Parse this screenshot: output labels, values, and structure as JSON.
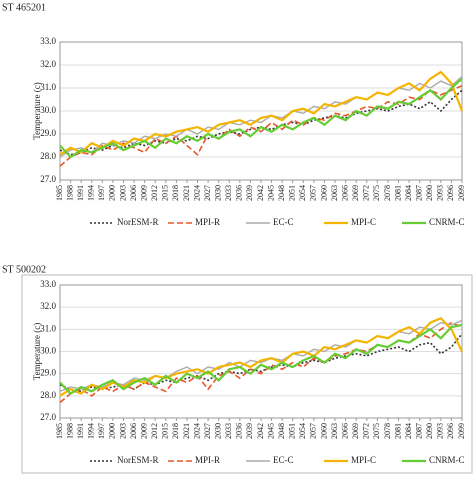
{
  "chart_data": [
    {
      "type": "line",
      "title": "ST 465201",
      "y_label": "Temperature (c)",
      "x": [
        1985,
        1988,
        1991,
        1994,
        1997,
        2000,
        2003,
        2006,
        2009,
        2012,
        2015,
        2018,
        2021,
        2024,
        2027,
        2030,
        2033,
        2036,
        2039,
        2042,
        2045,
        2048,
        2051,
        2054,
        2057,
        2060,
        2063,
        2066,
        2069,
        2072,
        2075,
        2078,
        2081,
        2084,
        2087,
        2090,
        2093,
        2096,
        2099
      ],
      "xlim": [
        1985,
        2099
      ],
      "xticks": [
        1985,
        1988,
        1991,
        1994,
        1997,
        2000,
        2003,
        2006,
        2009,
        2012,
        2015,
        2018,
        2021,
        2024,
        2027,
        2030,
        2033,
        2036,
        2039,
        2042,
        2045,
        2048,
        2051,
        2054,
        2057,
        2060,
        2063,
        2066,
        2069,
        2072,
        2075,
        2078,
        2081,
        2084,
        2087,
        2090,
        2093,
        2096,
        2099
      ],
      "ylim": [
        27,
        33
      ],
      "yticks": [
        {
          "value": 27,
          "label": "27.0"
        },
        {
          "value": 28,
          "label": "28.0"
        },
        {
          "value": 29,
          "label": "29.0"
        },
        {
          "value": 30,
          "label": "30.0"
        },
        {
          "value": 31,
          "label": "31.0"
        },
        {
          "value": 32,
          "label": "32.0"
        },
        {
          "value": 33,
          "label": "33.0"
        }
      ],
      "series": [
        {
          "name": "NorESM-R",
          "color": "#333333",
          "values": [
            28.3,
            28.1,
            28.2,
            28.4,
            28.3,
            28.5,
            28.4,
            28.6,
            28.5,
            28.7,
            28.6,
            28.8,
            28.7,
            28.9,
            28.8,
            29.0,
            29.1,
            29.0,
            29.2,
            29.3,
            29.2,
            29.4,
            29.5,
            29.4,
            29.6,
            29.7,
            29.8,
            29.7,
            29.9,
            30.0,
            30.1,
            30.0,
            30.2,
            30.3,
            30.1,
            30.4,
            30.0,
            30.5,
            30.9
          ]
        },
        {
          "name": "MPI-R",
          "color": "#e8562a",
          "values": [
            27.6,
            28.0,
            28.2,
            28.1,
            28.5,
            28.3,
            28.6,
            28.4,
            28.2,
            28.8,
            28.6,
            28.9,
            28.5,
            28.1,
            29.0,
            28.8,
            29.2,
            28.9,
            29.3,
            29.1,
            29.5,
            29.2,
            29.6,
            29.4,
            29.7,
            29.6,
            29.9,
            29.8,
            30.0,
            30.2,
            30.1,
            30.4,
            30.3,
            30.6,
            30.5,
            30.9,
            30.7,
            30.9,
            31.1
          ]
        },
        {
          "name": "EC-C",
          "color": "#aaaaaa",
          "values": [
            28.0,
            28.3,
            28.4,
            28.2,
            28.6,
            28.5,
            28.7,
            28.6,
            28.9,
            28.8,
            29.0,
            28.9,
            29.2,
            29.0,
            29.3,
            29.2,
            29.5,
            29.4,
            29.6,
            29.5,
            29.8,
            29.7,
            30.0,
            29.9,
            30.2,
            30.1,
            30.4,
            30.3,
            30.6,
            30.5,
            30.8,
            30.7,
            31.0,
            30.9,
            31.2,
            31.0,
            31.3,
            31.1,
            31.5
          ]
        },
        {
          "name": "MPI-C",
          "color": "#f5b400",
          "values": [
            28.1,
            28.4,
            28.2,
            28.6,
            28.4,
            28.7,
            28.5,
            28.8,
            28.7,
            29.0,
            28.9,
            29.1,
            29.2,
            29.3,
            29.1,
            29.4,
            29.5,
            29.6,
            29.4,
            29.7,
            29.8,
            29.6,
            30.0,
            30.1,
            29.9,
            30.3,
            30.2,
            30.4,
            30.6,
            30.5,
            30.8,
            30.7,
            31.0,
            31.2,
            30.9,
            31.4,
            31.7,
            31.2,
            30.0
          ]
        },
        {
          "name": "CNRM-C",
          "color": "#66cc33",
          "values": [
            28.5,
            28.0,
            28.3,
            28.2,
            28.4,
            28.6,
            28.3,
            28.5,
            28.7,
            28.4,
            28.8,
            28.6,
            28.9,
            28.7,
            29.0,
            28.8,
            29.1,
            29.2,
            28.9,
            29.3,
            29.1,
            29.4,
            29.2,
            29.5,
            29.7,
            29.4,
            29.8,
            29.6,
            30.0,
            29.8,
            30.2,
            30.1,
            30.4,
            30.3,
            30.6,
            30.9,
            30.5,
            31.0,
            31.4
          ]
        }
      ]
    },
    {
      "type": "line",
      "title": "ST 500202",
      "y_label": "Temperature (c)",
      "x": [
        1985,
        1988,
        1991,
        1994,
        1997,
        2000,
        2003,
        2006,
        2009,
        2012,
        2015,
        2018,
        2021,
        2024,
        2027,
        2030,
        2033,
        2036,
        2039,
        2042,
        2045,
        2048,
        2051,
        2054,
        2057,
        2060,
        2063,
        2066,
        2069,
        2072,
        2075,
        2078,
        2081,
        2084,
        2087,
        2090,
        2093,
        2096,
        2099
      ],
      "xlim": [
        1985,
        2099
      ],
      "xticks": [
        1985,
        1988,
        1991,
        1994,
        1997,
        2000,
        2003,
        2006,
        2009,
        2012,
        2015,
        2018,
        2021,
        2024,
        2027,
        2030,
        2033,
        2036,
        2039,
        2042,
        2045,
        2048,
        2051,
        2054,
        2057,
        2060,
        2063,
        2066,
        2069,
        2072,
        2075,
        2078,
        2081,
        2084,
        2087,
        2090,
        2093,
        2096,
        2099
      ],
      "ylim": [
        27,
        33
      ],
      "yticks": [
        {
          "value": 27,
          "label": "27.0"
        },
        {
          "value": 28,
          "label": "28.0"
        },
        {
          "value": 29,
          "label": "29.0"
        },
        {
          "value": 30,
          "label": "30.0"
        },
        {
          "value": 31,
          "label": "31.0"
        },
        {
          "value": 32,
          "label": "32.0"
        },
        {
          "value": 33,
          "label": "33.0"
        }
      ],
      "series": [
        {
          "name": "NorESM-R",
          "color": "#333333",
          "values": [
            28.5,
            28.3,
            28.2,
            28.4,
            28.3,
            28.4,
            28.5,
            28.3,
            28.6,
            28.5,
            28.7,
            28.6,
            28.8,
            28.9,
            28.7,
            29.0,
            29.1,
            29.0,
            29.2,
            29.1,
            29.3,
            29.4,
            29.3,
            29.5,
            29.6,
            29.5,
            29.7,
            29.8,
            29.9,
            29.8,
            30.0,
            30.1,
            30.2,
            30.0,
            30.3,
            30.4,
            29.9,
            30.2,
            30.8
          ]
        },
        {
          "name": "MPI-R",
          "color": "#e8562a",
          "values": [
            27.7,
            28.1,
            28.3,
            28.0,
            28.4,
            28.2,
            28.5,
            28.3,
            28.6,
            28.4,
            28.2,
            28.8,
            28.6,
            28.9,
            28.3,
            28.9,
            29.1,
            28.8,
            29.2,
            29.0,
            29.4,
            29.2,
            29.5,
            29.3,
            29.7,
            29.5,
            29.8,
            29.9,
            30.1,
            30.0,
            30.3,
            30.2,
            30.5,
            30.4,
            30.8,
            30.6,
            31.0,
            31.3,
            31.1
          ]
        },
        {
          "name": "EC-C",
          "color": "#aaaaaa",
          "values": [
            28.2,
            28.4,
            28.3,
            28.5,
            28.4,
            28.6,
            28.5,
            28.8,
            28.7,
            28.9,
            28.8,
            29.1,
            29.3,
            29.0,
            29.3,
            29.2,
            29.5,
            29.3,
            29.6,
            29.5,
            29.7,
            29.6,
            29.9,
            29.8,
            30.1,
            30.0,
            30.3,
            30.2,
            30.5,
            30.4,
            30.7,
            30.6,
            30.9,
            30.8,
            31.1,
            31.0,
            31.3,
            31.2,
            31.4
          ]
        },
        {
          "name": "MPI-C",
          "color": "#f5b400",
          "values": [
            28.0,
            28.3,
            28.1,
            28.5,
            28.3,
            28.6,
            28.4,
            28.7,
            28.6,
            28.9,
            28.8,
            29.0,
            29.1,
            29.2,
            29.0,
            29.3,
            29.4,
            29.5,
            29.3,
            29.6,
            29.7,
            29.5,
            29.9,
            30.0,
            29.8,
            30.2,
            30.1,
            30.3,
            30.5,
            30.4,
            30.7,
            30.6,
            30.9,
            31.1,
            30.8,
            31.3,
            31.5,
            31.0,
            30.0
          ]
        },
        {
          "name": "CNRM-C",
          "color": "#66cc33",
          "values": [
            28.6,
            28.1,
            28.4,
            28.2,
            28.5,
            28.7,
            28.3,
            28.6,
            28.8,
            28.5,
            28.9,
            28.6,
            29.0,
            28.8,
            29.1,
            28.7,
            29.2,
            29.3,
            29.0,
            29.4,
            29.2,
            29.5,
            29.3,
            29.6,
            29.8,
            29.5,
            29.9,
            29.7,
            30.1,
            29.9,
            30.3,
            30.2,
            30.5,
            30.4,
            30.7,
            31.0,
            30.6,
            31.1,
            31.2
          ]
        }
      ]
    }
  ]
}
